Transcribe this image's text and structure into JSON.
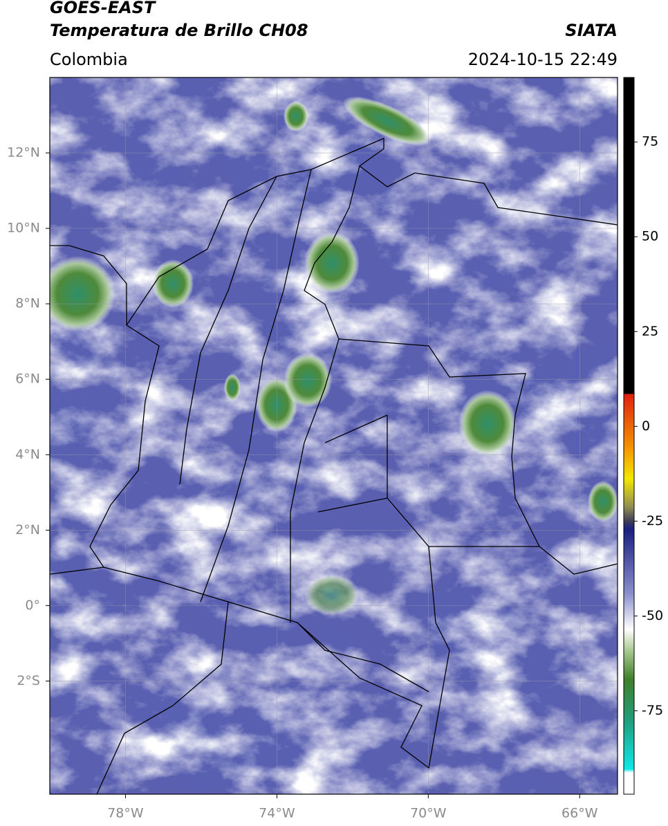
{
  "header": {
    "title_line1": "GOES-EAST",
    "title_line2": "Temperatura de Brillo CH08",
    "source": "SIATA",
    "region": "Colombia",
    "datetime": "2024-10-15 22:49"
  },
  "map": {
    "xlim": [
      -80,
      -65
    ],
    "ylim": [
      -5,
      14
    ],
    "grid": true,
    "xticks": [
      {
        "value": -78,
        "label": "78°W"
      },
      {
        "value": -74,
        "label": "74°W"
      },
      {
        "value": -70,
        "label": "70°W"
      },
      {
        "value": -66,
        "label": "66°W"
      }
    ],
    "yticks": [
      {
        "value": 12,
        "label": "12°N"
      },
      {
        "value": 10,
        "label": "10°N"
      },
      {
        "value": 8,
        "label": "8°N"
      },
      {
        "value": 6,
        "label": "6°N"
      },
      {
        "value": 4,
        "label": "4°N"
      },
      {
        "value": 2,
        "label": "2°N"
      },
      {
        "value": 0,
        "label": "0°"
      },
      {
        "value": -2,
        "label": "2°S"
      }
    ]
  },
  "colorbar": {
    "lim": [
      -97,
      92
    ],
    "ticks": [
      75,
      50,
      25,
      0,
      -25,
      -50,
      -75
    ]
  }
}
